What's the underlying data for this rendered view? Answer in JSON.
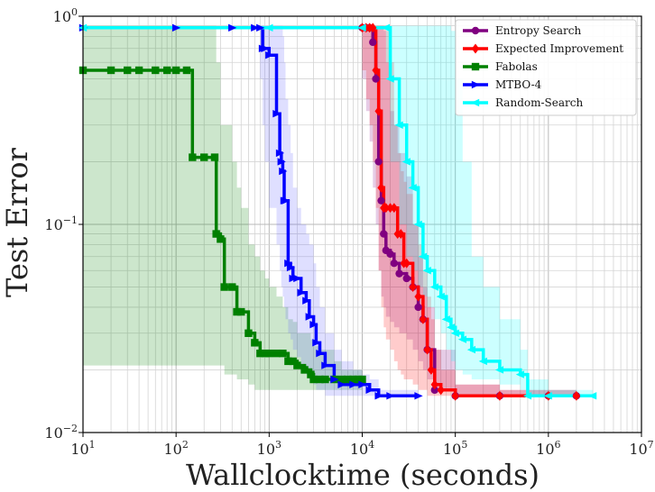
{
  "chart_data": {
    "type": "line",
    "title": "",
    "xlabel": "Wallclocktime (seconds)",
    "ylabel": "Test Error",
    "xscale": "log",
    "yscale": "log",
    "xlim": [
      10,
      10000000
    ],
    "ylim": [
      0.01,
      1
    ],
    "x_ticks": [
      {
        "value": 10,
        "base": "10",
        "exp": "1"
      },
      {
        "value": 100,
        "base": "10",
        "exp": "2"
      },
      {
        "value": 1000,
        "base": "10",
        "exp": "3"
      },
      {
        "value": 10000,
        "base": "10",
        "exp": "4"
      },
      {
        "value": 100000,
        "base": "10",
        "exp": "5"
      },
      {
        "value": 1000000,
        "base": "10",
        "exp": "6"
      },
      {
        "value": 10000000,
        "base": "10",
        "exp": "7"
      }
    ],
    "y_ticks": [
      {
        "value": 0.01,
        "base": "10",
        "exp": "−2"
      },
      {
        "value": 0.1,
        "base": "10",
        "exp": "−1"
      },
      {
        "value": 1,
        "base": "10",
        "exp": "0"
      }
    ],
    "grid": true,
    "legend_position": "top-right",
    "series": [
      {
        "name": "Fabolas",
        "color": "#008000",
        "marker": "square",
        "band_color": "#008000",
        "x": [
          10,
          20,
          30,
          40,
          60,
          80,
          100,
          130,
          150,
          200,
          260,
          270,
          300,
          330,
          400,
          450,
          500,
          600,
          700,
          800,
          900,
          1000,
          1200,
          1400,
          1600,
          1800,
          2000,
          2400,
          2800,
          3000,
          3500,
          4000,
          5000,
          6000,
          7000,
          8000,
          9000,
          10000
        ],
        "y": [
          0.55,
          0.55,
          0.55,
          0.55,
          0.55,
          0.55,
          0.55,
          0.55,
          0.21,
          0.21,
          0.21,
          0.09,
          0.085,
          0.05,
          0.05,
          0.038,
          0.038,
          0.03,
          0.027,
          0.024,
          0.024,
          0.024,
          0.024,
          0.024,
          0.022,
          0.022,
          0.021,
          0.02,
          0.019,
          0.018,
          0.018,
          0.018,
          0.018,
          0.018,
          0.018,
          0.018,
          0.018,
          0.018
        ],
        "lower": [
          0.021,
          0.021,
          0.021,
          0.021,
          0.021,
          0.021,
          0.021,
          0.021,
          0.021,
          0.021,
          0.021,
          0.021,
          0.021,
          0.019,
          0.019,
          0.018,
          0.018,
          0.017,
          0.016,
          0.016,
          0.016,
          0.016,
          0.016,
          0.016,
          0.016,
          0.016,
          0.016,
          0.016,
          0.016,
          0.016,
          0.016,
          0.016,
          0.016,
          0.016,
          0.016,
          0.016,
          0.016,
          0.016
        ],
        "upper": [
          0.9,
          0.9,
          0.9,
          0.9,
          0.9,
          0.9,
          0.9,
          0.9,
          0.9,
          0.9,
          0.9,
          0.6,
          0.3,
          0.3,
          0.2,
          0.15,
          0.12,
          0.08,
          0.07,
          0.06,
          0.055,
          0.05,
          0.045,
          0.04,
          0.035,
          0.034,
          0.03,
          0.03,
          0.028,
          0.026,
          0.025,
          0.025,
          0.022,
          0.02,
          0.02,
          0.02,
          0.02,
          0.02
        ]
      },
      {
        "name": "MTBO-4",
        "color": "#0000ff",
        "marker": "triangle-right",
        "band_color": "#6060ff",
        "x": [
          10,
          100,
          400,
          700,
          800,
          850,
          900,
          1000,
          1200,
          1300,
          1350,
          1400,
          1450,
          1500,
          1600,
          1700,
          1800,
          2000,
          2200,
          2500,
          2700,
          3000,
          3200,
          3500,
          4000,
          5000,
          6000,
          8000,
          10000,
          12000,
          15000,
          20000,
          40000
        ],
        "y": [
          0.88,
          0.88,
          0.88,
          0.88,
          0.88,
          0.7,
          0.7,
          0.65,
          0.34,
          0.22,
          0.2,
          0.18,
          0.13,
          0.13,
          0.065,
          0.062,
          0.055,
          0.055,
          0.047,
          0.043,
          0.036,
          0.033,
          0.027,
          0.024,
          0.021,
          0.018,
          0.017,
          0.017,
          0.017,
          0.016,
          0.015,
          0.015,
          0.015
        ],
        "lower": [
          0.88,
          0.88,
          0.88,
          0.88,
          0.5,
          0.3,
          0.2,
          0.12,
          0.08,
          0.06,
          0.05,
          0.045,
          0.04,
          0.035,
          0.03,
          0.028,
          0.025,
          0.023,
          0.021,
          0.019,
          0.018,
          0.017,
          0.016,
          0.016,
          0.015,
          0.015,
          0.015,
          0.015,
          0.015,
          0.015,
          0.015,
          0.015,
          0.015
        ],
        "upper": [
          0.88,
          0.88,
          0.88,
          0.88,
          0.9,
          0.9,
          0.9,
          0.9,
          0.9,
          0.9,
          0.9,
          0.8,
          0.6,
          0.4,
          0.3,
          0.22,
          0.15,
          0.12,
          0.1,
          0.09,
          0.08,
          0.065,
          0.05,
          0.04,
          0.03,
          0.025,
          0.022,
          0.02,
          0.019,
          0.018,
          0.016,
          0.016,
          0.016
        ]
      },
      {
        "name": "Entropy Search",
        "color": "#800080",
        "marker": "circle",
        "band_color": "#800080",
        "x": [
          10000,
          11000,
          12000,
          13000,
          14000,
          15000,
          16000,
          17000,
          18000,
          20000,
          22000,
          25000,
          30000,
          35000,
          40000,
          45000,
          50000,
          60000,
          100000,
          300000,
          1000000,
          2000000
        ],
        "y": [
          0.88,
          0.88,
          0.88,
          0.75,
          0.5,
          0.2,
          0.13,
          0.09,
          0.075,
          0.072,
          0.065,
          0.058,
          0.055,
          0.05,
          0.04,
          0.035,
          0.025,
          0.016,
          0.015,
          0.015,
          0.015,
          0.015
        ],
        "lower": [
          0.5,
          0.35,
          0.25,
          0.15,
          0.1,
          0.06,
          0.045,
          0.04,
          0.036,
          0.034,
          0.032,
          0.03,
          0.028,
          0.025,
          0.022,
          0.02,
          0.018,
          0.016,
          0.015,
          0.015,
          0.015,
          0.015
        ],
        "upper": [
          0.9,
          0.9,
          0.9,
          0.9,
          0.9,
          0.9,
          0.9,
          0.85,
          0.6,
          0.35,
          0.3,
          0.22,
          0.17,
          0.1,
          0.07,
          0.05,
          0.04,
          0.025,
          0.017,
          0.016,
          0.016,
          0.016
        ]
      },
      {
        "name": "Expected Improvement",
        "color": "#ff0000",
        "marker": "diamond",
        "band_color": "#ff0000",
        "x": [
          10000,
          11000,
          12000,
          13000,
          14000,
          15000,
          16000,
          17000,
          18000,
          20000,
          22000,
          24000,
          26000,
          28000,
          30000,
          35000,
          40000,
          45000,
          50000,
          55000,
          60000,
          70000,
          100000,
          300000,
          1000000,
          2000000
        ],
        "y": [
          0.88,
          0.88,
          0.88,
          0.88,
          0.55,
          0.35,
          0.15,
          0.12,
          0.12,
          0.12,
          0.12,
          0.09,
          0.09,
          0.065,
          0.065,
          0.05,
          0.045,
          0.035,
          0.025,
          0.02,
          0.017,
          0.016,
          0.015,
          0.015,
          0.015,
          0.015
        ],
        "lower": [
          0.55,
          0.4,
          0.3,
          0.2,
          0.12,
          0.06,
          0.04,
          0.032,
          0.028,
          0.025,
          0.022,
          0.02,
          0.019,
          0.018,
          0.018,
          0.017,
          0.016,
          0.016,
          0.015,
          0.015,
          0.015,
          0.015,
          0.015,
          0.015,
          0.015,
          0.015
        ],
        "upper": [
          0.9,
          0.9,
          0.9,
          0.9,
          0.9,
          0.9,
          0.9,
          0.9,
          0.85,
          0.6,
          0.3,
          0.22,
          0.18,
          0.16,
          0.14,
          0.1,
          0.08,
          0.06,
          0.045,
          0.035,
          0.025,
          0.02,
          0.017,
          0.016,
          0.016,
          0.016
        ]
      },
      {
        "name": "Random-Search",
        "color": "#00ffff",
        "marker": "triangle-left",
        "band_color": "#00ffff",
        "x": [
          10,
          1000,
          10000,
          18000,
          20000,
          25000,
          30000,
          35000,
          40000,
          45000,
          50000,
          60000,
          70000,
          80000,
          90000,
          100000,
          120000,
          150000,
          200000,
          300000,
          500000,
          600000,
          1000000,
          3000000
        ],
        "y": [
          0.88,
          0.88,
          0.88,
          0.88,
          0.5,
          0.3,
          0.2,
          0.15,
          0.1,
          0.07,
          0.06,
          0.05,
          0.045,
          0.035,
          0.032,
          0.03,
          0.028,
          0.025,
          0.022,
          0.02,
          0.019,
          0.015,
          0.015,
          0.015
        ],
        "lower": [
          0.88,
          0.88,
          0.88,
          0.6,
          0.2,
          0.1,
          0.07,
          0.06,
          0.05,
          0.045,
          0.04,
          0.035,
          0.03,
          0.025,
          0.022,
          0.02,
          0.019,
          0.018,
          0.018,
          0.017,
          0.016,
          0.015,
          0.015,
          0.015
        ],
        "upper": [
          0.9,
          0.9,
          0.9,
          0.9,
          0.9,
          0.9,
          0.9,
          0.9,
          0.9,
          0.9,
          0.9,
          0.9,
          0.9,
          0.9,
          0.85,
          0.5,
          0.2,
          0.07,
          0.05,
          0.035,
          0.025,
          0.018,
          0.016,
          0.016
        ]
      }
    ],
    "legend": [
      {
        "name": "Entropy Search",
        "color": "#800080",
        "marker": "circle"
      },
      {
        "name": "Expected Improvement",
        "color": "#ff0000",
        "marker": "diamond"
      },
      {
        "name": "Fabolas",
        "color": "#008000",
        "marker": "square"
      },
      {
        "name": "MTBO-4",
        "color": "#0000ff",
        "marker": "triangle-right"
      },
      {
        "name": "Random-Search",
        "color": "#00ffff",
        "marker": "triangle-left"
      }
    ]
  }
}
